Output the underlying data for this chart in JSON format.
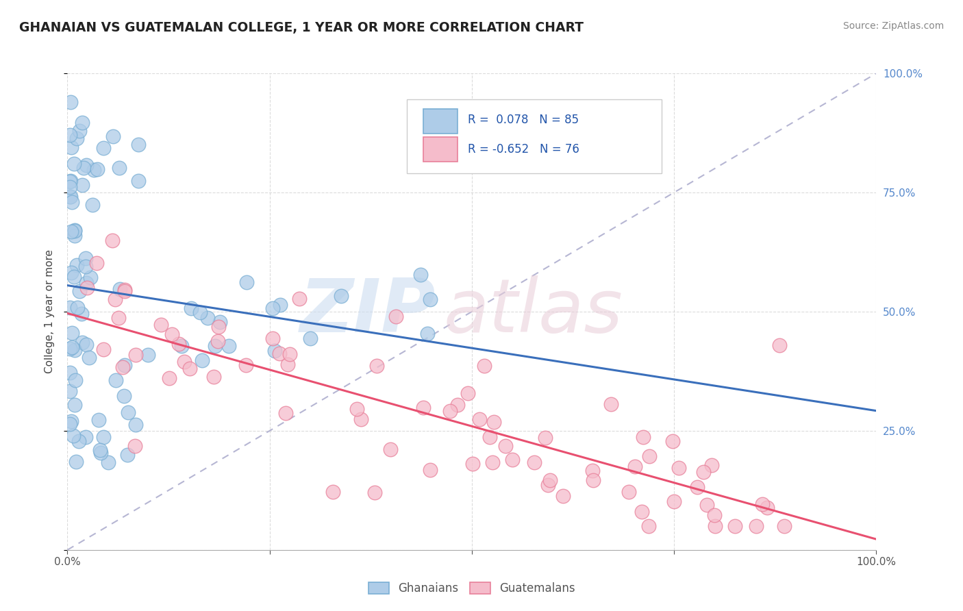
{
  "title": "GHANAIAN VS GUATEMALAN COLLEGE, 1 YEAR OR MORE CORRELATION CHART",
  "source": "Source: ZipAtlas.com",
  "ylabel": "College, 1 year or more",
  "xlim": [
    0.0,
    1.0
  ],
  "ylim": [
    0.0,
    1.0
  ],
  "ghanaian_color": "#aecce8",
  "ghanaian_edge": "#7aafd4",
  "guatemalan_color": "#f5bccb",
  "guatemalan_edge": "#e8809a",
  "trend_ghanaian": "#3a6fbb",
  "trend_guatemalan": "#e85070",
  "trend_dashed_color": "#aaaacc",
  "R_ghanaian": 0.078,
  "N_ghanaian": 85,
  "R_guatemalan": -0.652,
  "N_guatemalan": 76,
  "background_color": "#ffffff",
  "grid_color": "#cccccc",
  "title_color": "#222222",
  "axis_label_color": "#444444",
  "tick_color": "#555555",
  "source_color": "#888888",
  "right_tick_color": "#5588cc",
  "zip_color": "#ccddf0",
  "atlas_color": "#e8ccd8"
}
